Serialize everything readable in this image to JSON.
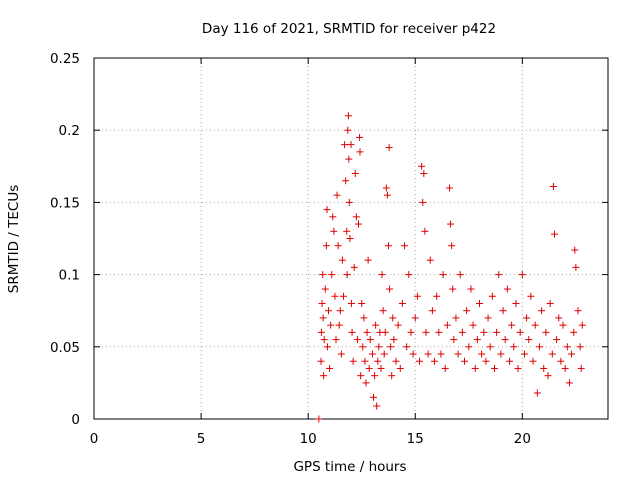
{
  "chart_data": {
    "type": "scatter",
    "title": "Day 116 of 2021, SRMTID for receiver p422",
    "xlabel": "GPS time / hours",
    "ylabel": "SRMTID / TECUs",
    "xlim": [
      0,
      24
    ],
    "ylim": [
      0,
      0.25
    ],
    "xticks": [
      0,
      5,
      10,
      15,
      20
    ],
    "yticks": [
      0,
      0.05,
      0.1,
      0.15,
      0.2,
      0.25
    ],
    "ytick_labels": [
      "0",
      "0.05",
      "0.1",
      "0.15",
      "0.2",
      "0.25"
    ],
    "grid": true,
    "marker": "+",
    "color": "#e00000",
    "series": [
      {
        "name": "SRMTID",
        "points": [
          [
            10.5,
            0.0
          ],
          [
            10.6,
            0.04
          ],
          [
            10.62,
            0.06
          ],
          [
            10.65,
            0.08
          ],
          [
            10.68,
            0.1
          ],
          [
            10.7,
            0.07
          ],
          [
            10.72,
            0.03
          ],
          [
            10.75,
            0.055
          ],
          [
            10.8,
            0.09
          ],
          [
            10.85,
            0.12
          ],
          [
            10.88,
            0.145
          ],
          [
            10.9,
            0.05
          ],
          [
            10.95,
            0.075
          ],
          [
            11.0,
            0.035
          ],
          [
            11.05,
            0.065
          ],
          [
            11.1,
            0.1
          ],
          [
            11.15,
            0.14
          ],
          [
            11.2,
            0.13
          ],
          [
            11.25,
            0.085
          ],
          [
            11.3,
            0.055
          ],
          [
            11.35,
            0.155
          ],
          [
            11.4,
            0.12
          ],
          [
            11.45,
            0.065
          ],
          [
            11.5,
            0.075
          ],
          [
            11.55,
            0.045
          ],
          [
            11.6,
            0.11
          ],
          [
            11.65,
            0.085
          ],
          [
            11.7,
            0.19
          ],
          [
            11.75,
            0.165
          ],
          [
            11.8,
            0.13
          ],
          [
            11.82,
            0.1
          ],
          [
            11.85,
            0.2
          ],
          [
            11.88,
            0.21
          ],
          [
            11.9,
            0.18
          ],
          [
            11.92,
            0.15
          ],
          [
            11.95,
            0.125
          ],
          [
            12.0,
            0.19
          ],
          [
            12.02,
            0.08
          ],
          [
            12.05,
            0.06
          ],
          [
            12.1,
            0.04
          ],
          [
            12.15,
            0.105
          ],
          [
            12.2,
            0.17
          ],
          [
            12.25,
            0.14
          ],
          [
            12.3,
            0.055
          ],
          [
            12.35,
            0.135
          ],
          [
            12.4,
            0.195
          ],
          [
            12.42,
            0.185
          ],
          [
            12.45,
            0.03
          ],
          [
            12.5,
            0.08
          ],
          [
            12.55,
            0.05
          ],
          [
            12.6,
            0.07
          ],
          [
            12.65,
            0.04
          ],
          [
            12.7,
            0.025
          ],
          [
            12.75,
            0.06
          ],
          [
            12.8,
            0.11
          ],
          [
            12.85,
            0.035
          ],
          [
            12.9,
            0.055
          ],
          [
            13.0,
            0.045
          ],
          [
            13.05,
            0.015
          ],
          [
            13.1,
            0.03
          ],
          [
            13.15,
            0.065
          ],
          [
            13.2,
            0.009
          ],
          [
            13.25,
            0.04
          ],
          [
            13.3,
            0.05
          ],
          [
            13.35,
            0.06
          ],
          [
            13.4,
            0.035
          ],
          [
            13.45,
            0.1
          ],
          [
            13.5,
            0.075
          ],
          [
            13.55,
            0.045
          ],
          [
            13.6,
            0.06
          ],
          [
            13.65,
            0.16
          ],
          [
            13.7,
            0.155
          ],
          [
            13.75,
            0.12
          ],
          [
            13.78,
            0.188
          ],
          [
            13.8,
            0.09
          ],
          [
            13.85,
            0.05
          ],
          [
            13.9,
            0.03
          ],
          [
            13.95,
            0.07
          ],
          [
            14.0,
            0.055
          ],
          [
            14.1,
            0.04
          ],
          [
            14.2,
            0.065
          ],
          [
            14.3,
            0.035
          ],
          [
            14.4,
            0.08
          ],
          [
            14.5,
            0.12
          ],
          [
            14.6,
            0.05
          ],
          [
            14.7,
            0.1
          ],
          [
            14.8,
            0.06
          ],
          [
            14.9,
            0.045
          ],
          [
            15.0,
            0.07
          ],
          [
            15.1,
            0.085
          ],
          [
            15.2,
            0.04
          ],
          [
            15.3,
            0.175
          ],
          [
            15.35,
            0.15
          ],
          [
            15.4,
            0.17
          ],
          [
            15.45,
            0.13
          ],
          [
            15.5,
            0.06
          ],
          [
            15.6,
            0.045
          ],
          [
            15.7,
            0.11
          ],
          [
            15.8,
            0.075
          ],
          [
            15.9,
            0.04
          ],
          [
            16.0,
            0.085
          ],
          [
            16.1,
            0.06
          ],
          [
            16.2,
            0.045
          ],
          [
            16.3,
            0.1
          ],
          [
            16.4,
            0.035
          ],
          [
            16.5,
            0.065
          ],
          [
            16.6,
            0.16
          ],
          [
            16.65,
            0.135
          ],
          [
            16.7,
            0.12
          ],
          [
            16.75,
            0.09
          ],
          [
            16.8,
            0.055
          ],
          [
            16.9,
            0.07
          ],
          [
            17.0,
            0.045
          ],
          [
            17.1,
            0.1
          ],
          [
            17.2,
            0.06
          ],
          [
            17.3,
            0.04
          ],
          [
            17.4,
            0.075
          ],
          [
            17.5,
            0.05
          ],
          [
            17.6,
            0.09
          ],
          [
            17.7,
            0.065
          ],
          [
            17.8,
            0.035
          ],
          [
            17.9,
            0.055
          ],
          [
            18.0,
            0.08
          ],
          [
            18.1,
            0.045
          ],
          [
            18.2,
            0.06
          ],
          [
            18.3,
            0.04
          ],
          [
            18.4,
            0.07
          ],
          [
            18.5,
            0.05
          ],
          [
            18.6,
            0.085
          ],
          [
            18.7,
            0.035
          ],
          [
            18.8,
            0.06
          ],
          [
            18.9,
            0.1
          ],
          [
            19.0,
            0.045
          ],
          [
            19.1,
            0.075
          ],
          [
            19.2,
            0.055
          ],
          [
            19.3,
            0.09
          ],
          [
            19.4,
            0.04
          ],
          [
            19.5,
            0.065
          ],
          [
            19.6,
            0.05
          ],
          [
            19.7,
            0.08
          ],
          [
            19.8,
            0.035
          ],
          [
            19.9,
            0.06
          ],
          [
            20.0,
            0.1
          ],
          [
            20.1,
            0.045
          ],
          [
            20.2,
            0.07
          ],
          [
            20.3,
            0.055
          ],
          [
            20.4,
            0.085
          ],
          [
            20.5,
            0.04
          ],
          [
            20.6,
            0.065
          ],
          [
            20.7,
            0.018
          ],
          [
            20.8,
            0.05
          ],
          [
            20.9,
            0.075
          ],
          [
            21.0,
            0.035
          ],
          [
            21.1,
            0.06
          ],
          [
            21.2,
            0.03
          ],
          [
            21.3,
            0.08
          ],
          [
            21.4,
            0.045
          ],
          [
            21.45,
            0.161
          ],
          [
            21.5,
            0.128
          ],
          [
            21.6,
            0.055
          ],
          [
            21.7,
            0.07
          ],
          [
            21.8,
            0.04
          ],
          [
            21.9,
            0.065
          ],
          [
            22.0,
            0.035
          ],
          [
            22.1,
            0.05
          ],
          [
            22.2,
            0.025
          ],
          [
            22.3,
            0.045
          ],
          [
            22.4,
            0.06
          ],
          [
            22.45,
            0.117
          ],
          [
            22.5,
            0.105
          ],
          [
            22.6,
            0.075
          ],
          [
            22.7,
            0.05
          ],
          [
            22.75,
            0.035
          ],
          [
            22.8,
            0.065
          ]
        ]
      }
    ]
  }
}
